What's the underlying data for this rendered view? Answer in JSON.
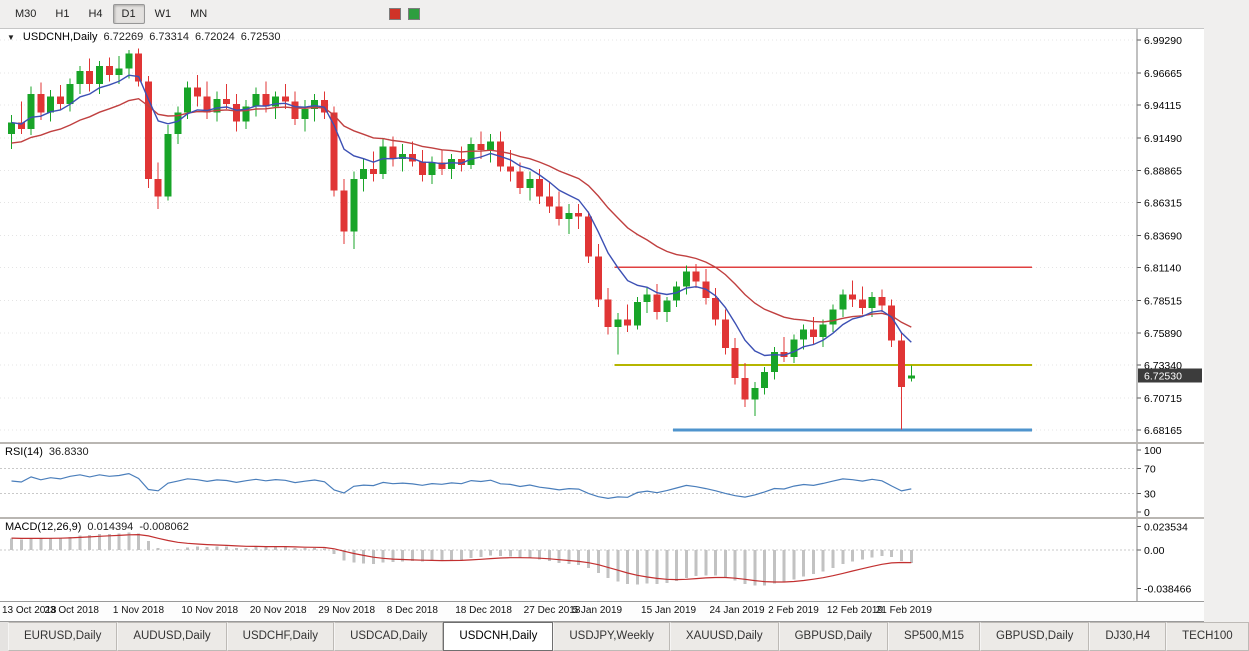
{
  "toolbar": {
    "timeframes": [
      {
        "label": "M30",
        "active": false
      },
      {
        "label": "H1",
        "active": false
      },
      {
        "label": "H4",
        "active": false
      },
      {
        "label": "D1",
        "active": true
      },
      {
        "label": "W1",
        "active": false
      },
      {
        "label": "MN",
        "active": false
      }
    ],
    "markers": [
      {
        "name": "red-marker-icon",
        "color": "#d03328"
      },
      {
        "name": "green-marker-icon",
        "color": "#2e9e3f"
      }
    ]
  },
  "chart_header": {
    "dropdown": "▼",
    "symbol": "USDCNH,Daily",
    "open": "6.72269",
    "high": "6.73314",
    "low": "6.72024",
    "close": "6.72530"
  },
  "price_axis": {
    "ticks": [
      "6.99290",
      "6.96665",
      "6.94115",
      "6.91490",
      "6.88865",
      "6.86315",
      "6.83690",
      "6.81140",
      "6.78515",
      "6.75890",
      "6.73340",
      "6.70715",
      "6.68165"
    ],
    "current": "6.72530",
    "current_value": 6.7253,
    "badge_color": "#3c3c3c"
  },
  "rsi_panel": {
    "name": "RSI(14)",
    "value": "36.8330",
    "axis": [
      "100",
      "70",
      "30",
      "0"
    ],
    "axis_values": [
      100,
      70,
      30,
      0
    ],
    "guide_levels": [
      70,
      30
    ],
    "line_color": "#4a7ebb"
  },
  "macd_panel": {
    "name": "MACD(12,26,9)",
    "value1": "0.014394",
    "value2": "-0.008062",
    "axis": [
      "0.023534",
      "0.00",
      "-0.038466"
    ],
    "axis_values": [
      0.023534,
      0,
      -0.038466
    ],
    "histogram_color": "#c2c2c2",
    "signal_color": "#c23030"
  },
  "date_axis": {
    "labels": [
      {
        "i": 0,
        "text": "13 Oct 2018"
      },
      {
        "i": 7,
        "text": "23 Oct 2018"
      },
      {
        "i": 14,
        "text": "1 Nov 2018"
      },
      {
        "i": 21,
        "text": "10 Nov 2018"
      },
      {
        "i": 28,
        "text": "20 Nov 2018"
      },
      {
        "i": 35,
        "text": "29 Nov 2018"
      },
      {
        "i": 42,
        "text": "8 Dec 2018"
      },
      {
        "i": 49,
        "text": "18 Dec 2018"
      },
      {
        "i": 56,
        "text": "27 Dec 2018"
      },
      {
        "i": 61,
        "text": "5 Jan 2019"
      },
      {
        "i": 68,
        "text": "15 Jan 2019"
      },
      {
        "i": 75,
        "text": "24 Jan 2019"
      },
      {
        "i": 81,
        "text": "2 Feb 2019"
      },
      {
        "i": 87,
        "text": "12 Feb 2019"
      },
      {
        "i": 92,
        "text": "21 Feb 2019"
      }
    ]
  },
  "tabs": [
    {
      "label": "EURUSD,Daily",
      "active": false
    },
    {
      "label": "AUDUSD,Daily",
      "active": false
    },
    {
      "label": "USDCHF,Daily",
      "active": false
    },
    {
      "label": "USDCAD,Daily",
      "active": false
    },
    {
      "label": "USDCNH,Daily",
      "active": true
    },
    {
      "label": "USDJPY,Weekly",
      "active": false
    },
    {
      "label": "XAUUSD,Daily",
      "active": false
    },
    {
      "label": "GBPUSD,Daily",
      "active": false
    },
    {
      "label": "SP500,M15",
      "active": false
    },
    {
      "label": "GBPUSD,Daily",
      "active": false
    },
    {
      "label": "DJ30,H4",
      "active": false
    },
    {
      "label": "TECH100",
      "active": false
    }
  ],
  "chart_data": {
    "type": "candlestick",
    "title": "USDCNH,Daily",
    "symbol": "USDCNH",
    "timeframe": "Daily",
    "ylim": [
      6.6721,
      7.0017
    ],
    "up_color": "#18a428",
    "down_color": "#e03535",
    "ma_fast": {
      "period": 8,
      "color": "#3c50b4"
    },
    "ma_slow": {
      "period": 21,
      "color": "#c04040"
    },
    "levels": [
      {
        "name": "resistance-line-red",
        "price": 6.8114,
        "color": "#e04040",
        "width": 1.5,
        "start_i": 62,
        "end_x": 1032
      },
      {
        "name": "support-line-yellow",
        "price": 6.7334,
        "color": "#b5b500",
        "width": 2,
        "start_i": 62,
        "end_x": 1032
      },
      {
        "name": "support-line-blue",
        "price": 6.6817,
        "color": "#4f94cd",
        "width": 3,
        "start_i": 68,
        "end_x": 1032
      }
    ],
    "candles": [
      [
        6.918,
        6.933,
        6.906,
        6.927
      ],
      [
        6.927,
        6.944,
        6.918,
        6.922
      ],
      [
        6.922,
        6.956,
        6.917,
        6.95
      ],
      [
        6.95,
        6.959,
        6.929,
        6.935
      ],
      [
        6.935,
        6.953,
        6.928,
        6.948
      ],
      [
        6.948,
        6.957,
        6.937,
        6.942
      ],
      [
        6.942,
        6.962,
        6.936,
        6.958
      ],
      [
        6.958,
        6.972,
        6.95,
        6.968
      ],
      [
        6.968,
        6.978,
        6.952,
        6.958
      ],
      [
        6.958,
        6.976,
        6.95,
        6.972
      ],
      [
        6.972,
        6.979,
        6.96,
        6.965
      ],
      [
        6.965,
        6.98,
        6.958,
        6.97
      ],
      [
        6.97,
        6.985,
        6.962,
        6.982
      ],
      [
        6.982,
        6.986,
        6.956,
        6.96
      ],
      [
        6.96,
        6.964,
        6.875,
        6.882
      ],
      [
        6.882,
        6.895,
        6.858,
        6.868
      ],
      [
        6.868,
        6.925,
        6.865,
        6.918
      ],
      [
        6.918,
        6.94,
        6.91,
        6.935
      ],
      [
        6.935,
        6.96,
        6.93,
        6.955
      ],
      [
        6.955,
        6.965,
        6.94,
        6.948
      ],
      [
        6.948,
        6.96,
        6.93,
        6.935
      ],
      [
        6.935,
        6.952,
        6.928,
        6.946
      ],
      [
        6.946,
        6.958,
        6.938,
        6.942
      ],
      [
        6.942,
        6.95,
        6.92,
        6.928
      ],
      [
        6.928,
        6.945,
        6.922,
        6.94
      ],
      [
        6.94,
        6.955,
        6.932,
        6.95
      ],
      [
        6.95,
        6.96,
        6.935,
        6.94
      ],
      [
        6.94,
        6.952,
        6.93,
        6.948
      ],
      [
        6.948,
        6.958,
        6.938,
        6.944
      ],
      [
        6.944,
        6.952,
        6.925,
        6.93
      ],
      [
        6.93,
        6.945,
        6.92,
        6.938
      ],
      [
        6.938,
        6.95,
        6.928,
        6.945
      ],
      [
        6.945,
        6.952,
        6.93,
        6.935
      ],
      [
        6.935,
        6.94,
        6.868,
        6.873
      ],
      [
        6.873,
        6.882,
        6.83,
        6.84
      ],
      [
        6.84,
        6.888,
        6.826,
        6.882
      ],
      [
        6.882,
        6.898,
        6.872,
        6.89
      ],
      [
        6.89,
        6.904,
        6.88,
        6.886
      ],
      [
        6.886,
        6.914,
        6.882,
        6.908
      ],
      [
        6.908,
        6.916,
        6.892,
        6.898
      ],
      [
        6.898,
        6.91,
        6.888,
        6.902
      ],
      [
        6.902,
        6.912,
        6.892,
        6.896
      ],
      [
        6.896,
        6.905,
        6.88,
        6.885
      ],
      [
        6.885,
        6.9,
        6.878,
        6.895
      ],
      [
        6.895,
        6.905,
        6.885,
        6.89
      ],
      [
        6.89,
        6.902,
        6.882,
        6.898
      ],
      [
        6.898,
        6.908,
        6.888,
        6.893
      ],
      [
        6.893,
        6.915,
        6.89,
        6.91
      ],
      [
        6.91,
        6.92,
        6.898,
        6.905
      ],
      [
        6.905,
        6.918,
        6.895,
        6.912
      ],
      [
        6.912,
        6.92,
        6.888,
        6.892
      ],
      [
        6.892,
        6.905,
        6.88,
        6.888
      ],
      [
        6.888,
        6.895,
        6.87,
        6.875
      ],
      [
        6.875,
        6.888,
        6.865,
        6.882
      ],
      [
        6.882,
        6.89,
        6.862,
        6.868
      ],
      [
        6.868,
        6.88,
        6.855,
        6.86
      ],
      [
        6.86,
        6.872,
        6.845,
        6.85
      ],
      [
        6.85,
        6.862,
        6.838,
        6.855
      ],
      [
        6.855,
        6.862,
        6.842,
        6.852
      ],
      [
        6.852,
        6.856,
        6.815,
        6.82
      ],
      [
        6.82,
        6.83,
        6.78,
        6.786
      ],
      [
        6.786,
        6.795,
        6.758,
        6.764
      ],
      [
        6.764,
        6.775,
        6.742,
        6.77
      ],
      [
        6.77,
        6.782,
        6.76,
        6.765
      ],
      [
        6.765,
        6.788,
        6.762,
        6.784
      ],
      [
        6.784,
        6.795,
        6.775,
        6.79
      ],
      [
        6.79,
        6.798,
        6.77,
        6.776
      ],
      [
        6.776,
        6.788,
        6.768,
        6.785
      ],
      [
        6.785,
        6.8,
        6.78,
        6.796
      ],
      [
        6.796,
        6.813,
        6.79,
        6.808
      ],
      [
        6.808,
        6.814,
        6.795,
        6.8
      ],
      [
        6.8,
        6.81,
        6.782,
        6.787
      ],
      [
        6.787,
        6.795,
        6.765,
        6.77
      ],
      [
        6.77,
        6.778,
        6.742,
        6.747
      ],
      [
        6.747,
        6.755,
        6.718,
        6.723
      ],
      [
        6.723,
        6.735,
        6.7,
        6.706
      ],
      [
        6.706,
        6.72,
        6.693,
        6.715
      ],
      [
        6.715,
        6.732,
        6.71,
        6.728
      ],
      [
        6.728,
        6.748,
        6.722,
        6.744
      ],
      [
        6.744,
        6.756,
        6.736,
        6.74
      ],
      [
        6.74,
        6.758,
        6.735,
        6.754
      ],
      [
        6.754,
        6.766,
        6.746,
        6.762
      ],
      [
        6.762,
        6.772,
        6.75,
        6.756
      ],
      [
        6.756,
        6.77,
        6.748,
        6.766
      ],
      [
        6.766,
        6.782,
        6.76,
        6.778
      ],
      [
        6.778,
        6.794,
        6.772,
        6.79
      ],
      [
        6.79,
        6.801,
        6.78,
        6.786
      ],
      [
        6.786,
        6.796,
        6.774,
        6.779
      ],
      [
        6.779,
        6.792,
        6.772,
        6.788
      ],
      [
        6.788,
        6.794,
        6.776,
        6.781
      ],
      [
        6.781,
        6.786,
        6.748,
        6.753
      ],
      [
        6.753,
        6.76,
        6.682,
        6.716
      ],
      [
        6.72269,
        6.73314,
        6.72024,
        6.7253
      ]
    ]
  }
}
